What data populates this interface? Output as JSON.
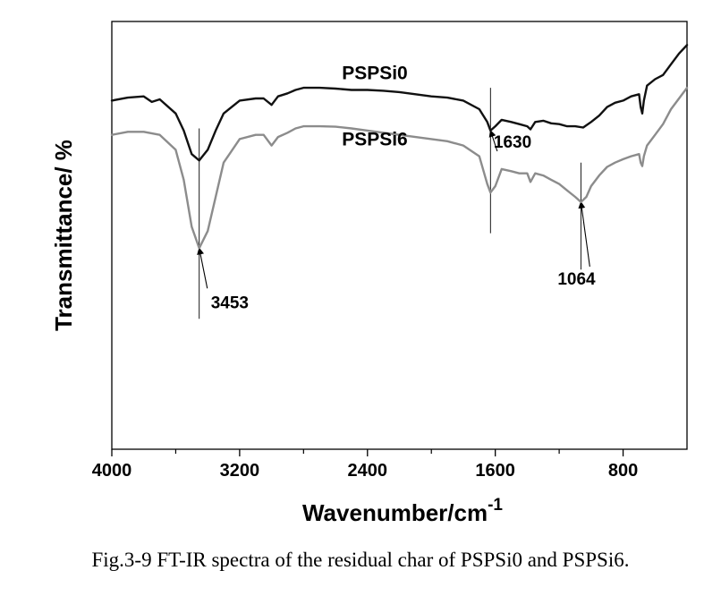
{
  "caption": "Fig.3-9 FT-IR spectra of the residual char of PSPSi0 and PSPSi6.",
  "chart_data": {
    "type": "line",
    "title": "",
    "xlabel": "Wavenumber/cm",
    "xlabel_superscript": "-1",
    "ylabel": "Transmittance/ %",
    "xlim": [
      4000,
      400
    ],
    "x_reversed": true,
    "ylim": [
      0,
      100
    ],
    "y_tick_labels_shown": false,
    "x_ticks": [
      4000,
      3200,
      2400,
      1600,
      800
    ],
    "x_tick_labels": [
      "4000",
      "3200",
      "2400",
      "1600",
      "800"
    ],
    "grid": false,
    "series": [
      {
        "name": "PSPSi0",
        "color": "#111111",
        "points": [
          [
            4000,
            81.5
          ],
          [
            3900,
            82.2
          ],
          [
            3800,
            82.5
          ],
          [
            3750,
            81.2
          ],
          [
            3700,
            81.8
          ],
          [
            3600,
            78.5
          ],
          [
            3550,
            74.5
          ],
          [
            3500,
            69.0
          ],
          [
            3453,
            67.5
          ],
          [
            3400,
            70.0
          ],
          [
            3350,
            74.5
          ],
          [
            3300,
            78.5
          ],
          [
            3200,
            81.5
          ],
          [
            3100,
            82.0
          ],
          [
            3050,
            82.0
          ],
          [
            3000,
            80.5
          ],
          [
            2960,
            82.5
          ],
          [
            2900,
            83.2
          ],
          [
            2850,
            84.0
          ],
          [
            2800,
            84.5
          ],
          [
            2700,
            84.5
          ],
          [
            2600,
            84.3
          ],
          [
            2500,
            84.0
          ],
          [
            2400,
            84.0
          ],
          [
            2300,
            83.8
          ],
          [
            2200,
            83.5
          ],
          [
            2100,
            83.0
          ],
          [
            2000,
            82.5
          ],
          [
            1900,
            82.2
          ],
          [
            1800,
            81.5
          ],
          [
            1700,
            79.5
          ],
          [
            1650,
            76.5
          ],
          [
            1630,
            74.5
          ],
          [
            1600,
            75.5
          ],
          [
            1560,
            77.0
          ],
          [
            1500,
            76.5
          ],
          [
            1450,
            76.0
          ],
          [
            1400,
            75.5
          ],
          [
            1380,
            74.8
          ],
          [
            1350,
            76.5
          ],
          [
            1300,
            76.8
          ],
          [
            1250,
            76.2
          ],
          [
            1200,
            76.0
          ],
          [
            1150,
            75.5
          ],
          [
            1100,
            75.5
          ],
          [
            1050,
            75.2
          ],
          [
            1000,
            76.5
          ],
          [
            950,
            78.0
          ],
          [
            900,
            80.0
          ],
          [
            850,
            81.0
          ],
          [
            800,
            81.5
          ],
          [
            750,
            82.5
          ],
          [
            700,
            83.0
          ],
          [
            690,
            80.0
          ],
          [
            680,
            78.5
          ],
          [
            670,
            81.5
          ],
          [
            650,
            85.0
          ],
          [
            600,
            86.5
          ],
          [
            550,
            87.5
          ],
          [
            500,
            90.0
          ],
          [
            450,
            92.5
          ],
          [
            400,
            94.5
          ]
        ]
      },
      {
        "name": "PSPSi6",
        "color": "#8c8c8c",
        "points": [
          [
            4000,
            73.5
          ],
          [
            3900,
            74.2
          ],
          [
            3800,
            74.2
          ],
          [
            3700,
            73.5
          ],
          [
            3600,
            70.0
          ],
          [
            3550,
            63.0
          ],
          [
            3500,
            52.0
          ],
          [
            3453,
            47.0
          ],
          [
            3400,
            51.0
          ],
          [
            3350,
            59.0
          ],
          [
            3300,
            67.0
          ],
          [
            3200,
            72.5
          ],
          [
            3100,
            73.5
          ],
          [
            3050,
            73.5
          ],
          [
            3000,
            71.0
          ],
          [
            2960,
            73.0
          ],
          [
            2900,
            74.0
          ],
          [
            2850,
            75.0
          ],
          [
            2800,
            75.5
          ],
          [
            2700,
            75.5
          ],
          [
            2600,
            75.4
          ],
          [
            2500,
            75.0
          ],
          [
            2400,
            74.5
          ],
          [
            2300,
            74.0
          ],
          [
            2200,
            73.5
          ],
          [
            2100,
            73.0
          ],
          [
            2000,
            72.5
          ],
          [
            1900,
            72.0
          ],
          [
            1800,
            71.0
          ],
          [
            1700,
            68.5
          ],
          [
            1650,
            62.0
          ],
          [
            1630,
            60.0
          ],
          [
            1600,
            61.5
          ],
          [
            1560,
            65.5
          ],
          [
            1500,
            65.0
          ],
          [
            1450,
            64.5
          ],
          [
            1400,
            64.5
          ],
          [
            1380,
            62.5
          ],
          [
            1350,
            64.5
          ],
          [
            1300,
            64.0
          ],
          [
            1250,
            63.0
          ],
          [
            1200,
            62.0
          ],
          [
            1150,
            60.5
          ],
          [
            1100,
            59.0
          ],
          [
            1064,
            57.8
          ],
          [
            1030,
            59.0
          ],
          [
            1000,
            61.5
          ],
          [
            950,
            64.0
          ],
          [
            900,
            66.0
          ],
          [
            850,
            67.0
          ],
          [
            800,
            67.8
          ],
          [
            750,
            68.5
          ],
          [
            700,
            69.0
          ],
          [
            690,
            67.0
          ],
          [
            680,
            66.2
          ],
          [
            670,
            68.5
          ],
          [
            650,
            71.0
          ],
          [
            600,
            73.5
          ],
          [
            550,
            76.0
          ],
          [
            500,
            79.5
          ],
          [
            450,
            82.0
          ],
          [
            400,
            84.5
          ]
        ]
      }
    ],
    "series_labels": [
      {
        "text": "PSPSi0",
        "x": 2560,
        "y": 86.5
      },
      {
        "text": "PSPSi6",
        "x": 2560,
        "y": 71.0
      }
    ],
    "annotations": [
      {
        "label": "3453",
        "peak_x": 3453,
        "line_top_y": 75.0,
        "line_bottom_y": 30.5,
        "tip_y": 47.0,
        "text_x": 3380,
        "text_y": 33.0
      },
      {
        "label": "1630",
        "peak_x": 1630,
        "line_top_y": 84.5,
        "line_bottom_y": 50.5,
        "tip_y": 74.5,
        "text_x": 1610,
        "text_y": 70.5
      },
      {
        "label": "1064",
        "peak_x": 1064,
        "line_top_y": 67.0,
        "line_bottom_y": 42.0,
        "tip_y": 57.8,
        "text_x": 1210,
        "text_y": 38.5
      }
    ]
  }
}
